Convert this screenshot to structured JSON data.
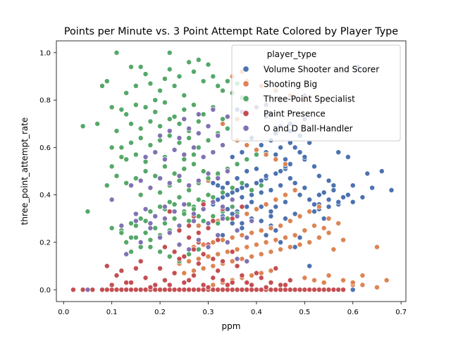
{
  "chart_data": {
    "type": "scatter",
    "title": "Points per Minute vs. 3 Point Attempt Rate Colored by Player Type",
    "xlabel": "ppm",
    "ylabel": "three_point_attempt_rate",
    "xlim": [
      -0.015,
      0.71
    ],
    "ylim": [
      -0.05,
      1.05
    ],
    "x_ticks": [
      0.0,
      0.1,
      0.2,
      0.3,
      0.4,
      0.5,
      0.6,
      0.7
    ],
    "x_tick_labels": [
      "0.0",
      "0.1",
      "0.2",
      "0.3",
      "0.4",
      "0.5",
      "0.6",
      "0.7"
    ],
    "y_ticks": [
      0.0,
      0.2,
      0.4,
      0.6,
      0.8,
      1.0
    ],
    "y_tick_labels": [
      "0.0",
      "0.2",
      "0.4",
      "0.6",
      "0.8",
      "1.0"
    ],
    "grid": false,
    "legend": {
      "title": "player_type",
      "placement": "top-right"
    },
    "series": [
      {
        "name": "Volume Shooter and Scorer",
        "color": "#4c72b0",
        "x": [
          0.61,
          0.66,
          0.68,
          0.63,
          0.59,
          0.6,
          0.57,
          0.55,
          0.56,
          0.54,
          0.53,
          0.52,
          0.5,
          0.49,
          0.47,
          0.46,
          0.45,
          0.44,
          0.42,
          0.41,
          0.4,
          0.38,
          0.37,
          0.36,
          0.35,
          0.34,
          0.33,
          0.32,
          0.31,
          0.5,
          0.48,
          0.47,
          0.45,
          0.43,
          0.41,
          0.39,
          0.37,
          0.52,
          0.51,
          0.49,
          0.46,
          0.44,
          0.42,
          0.4,
          0.38,
          0.36,
          0.34,
          0.55,
          0.57,
          0.53,
          0.51,
          0.48,
          0.46,
          0.43,
          0.41,
          0.39,
          0.37,
          0.35,
          0.33,
          0.31,
          0.29,
          0.47,
          0.45,
          0.42,
          0.4,
          0.38,
          0.36,
          0.44,
          0.47,
          0.5,
          0.53,
          0.56,
          0.58,
          0.6,
          0.62,
          0.64,
          0.43,
          0.41,
          0.39,
          0.37,
          0.35,
          0.33,
          0.45,
          0.48,
          0.49,
          0.51,
          0.54,
          0.52,
          0.46,
          0.44,
          0.42,
          0.4,
          0.38,
          0.36,
          0.34,
          0.32,
          0.48,
          0.5,
          0.46,
          0.44,
          0.43,
          0.41,
          0.4,
          0.39,
          0.37,
          0.35,
          0.38,
          0.36,
          0.42,
          0.45,
          0.47,
          0.49,
          0.51,
          0.59,
          0.57,
          0.55,
          0.53,
          0.43,
          0.41,
          0.39,
          0.37,
          0.35,
          0.33,
          0.31,
          0.47,
          0.45,
          0.44,
          0.42,
          0.6,
          0.44,
          0.46
        ],
        "y": [
          0.94,
          0.5,
          0.42,
          0.49,
          0.56,
          0.44,
          0.58,
          0.46,
          0.44,
          0.41,
          0.48,
          0.52,
          0.55,
          0.58,
          0.53,
          0.51,
          0.5,
          0.49,
          0.47,
          0.46,
          0.45,
          0.44,
          0.43,
          0.42,
          0.41,
          0.4,
          0.39,
          0.38,
          0.37,
          0.43,
          0.45,
          0.47,
          0.44,
          0.42,
          0.41,
          0.4,
          0.39,
          0.36,
          0.38,
          0.4,
          0.37,
          0.35,
          0.36,
          0.34,
          0.35,
          0.33,
          0.34,
          0.38,
          0.36,
          0.34,
          0.33,
          0.32,
          0.3,
          0.31,
          0.29,
          0.3,
          0.28,
          0.32,
          0.31,
          0.36,
          0.34,
          0.62,
          0.6,
          0.58,
          0.57,
          0.55,
          0.53,
          0.66,
          0.7,
          0.72,
          0.36,
          0.42,
          0.39,
          0.37,
          0.39,
          0.43,
          0.27,
          0.25,
          0.24,
          0.26,
          0.28,
          0.23,
          0.2,
          0.18,
          0.22,
          0.1,
          0.3,
          0.33,
          0.52,
          0.49,
          0.48,
          0.51,
          0.5,
          0.47,
          0.45,
          0.44,
          0.6,
          0.56,
          0.55,
          0.57,
          0.63,
          0.61,
          0.59,
          0.64,
          0.58,
          0.56,
          0.8,
          0.76,
          0.73,
          0.69,
          0.67,
          0.65,
          0.62,
          0.4,
          0.37,
          0.35,
          0.4,
          0.33,
          0.35,
          0.37,
          0.39,
          0.41,
          0.43,
          0.45,
          0.29,
          0.27,
          0.25,
          0.23,
          0.0,
          0.0,
          0.0
        ]
      },
      {
        "name": "Shooting Big",
        "color": "#dd8452",
        "x": [
          0.65,
          0.67,
          0.62,
          0.65,
          0.6,
          0.58,
          0.56,
          0.54,
          0.55,
          0.53,
          0.51,
          0.49,
          0.47,
          0.45,
          0.43,
          0.41,
          0.39,
          0.37,
          0.35,
          0.33,
          0.31,
          0.29,
          0.27,
          0.25,
          0.57,
          0.55,
          0.52,
          0.5,
          0.48,
          0.46,
          0.44,
          0.42,
          0.4,
          0.38,
          0.36,
          0.34,
          0.32,
          0.3,
          0.28,
          0.26,
          0.24,
          0.53,
          0.51,
          0.49,
          0.47,
          0.45,
          0.43,
          0.41,
          0.39,
          0.37,
          0.35,
          0.33,
          0.31,
          0.29,
          0.27,
          0.48,
          0.46,
          0.44,
          0.42,
          0.4,
          0.38,
          0.36,
          0.34,
          0.32,
          0.3,
          0.28,
          0.36,
          0.38,
          0.4,
          0.42,
          0.44,
          0.46,
          0.34,
          0.32,
          0.3,
          0.43,
          0.41,
          0.39,
          0.37,
          0.35,
          0.33,
          0.31,
          0.55,
          0.58,
          0.6,
          0.62,
          0.5,
          0.52,
          0.54,
          0.35,
          0.38,
          0.41,
          0.37,
          0.44,
          0.47,
          0.5,
          0.33,
          0.36
        ],
        "y": [
          0.18,
          0.04,
          0.06,
          0.01,
          0.02,
          0.21,
          0.17,
          0.26,
          0.24,
          0.22,
          0.2,
          0.19,
          0.18,
          0.17,
          0.16,
          0.15,
          0.14,
          0.13,
          0.12,
          0.11,
          0.1,
          0.09,
          0.08,
          0.07,
          0.28,
          0.3,
          0.27,
          0.25,
          0.23,
          0.22,
          0.21,
          0.2,
          0.19,
          0.18,
          0.17,
          0.16,
          0.15,
          0.14,
          0.13,
          0.12,
          0.11,
          0.35,
          0.33,
          0.31,
          0.29,
          0.27,
          0.26,
          0.25,
          0.24,
          0.23,
          0.22,
          0.21,
          0.2,
          0.19,
          0.18,
          0.42,
          0.4,
          0.38,
          0.36,
          0.34,
          0.32,
          0.31,
          0.3,
          0.29,
          0.28,
          0.27,
          0.63,
          0.61,
          0.59,
          0.57,
          0.55,
          0.53,
          0.5,
          0.48,
          0.46,
          0.08,
          0.07,
          0.06,
          0.05,
          0.04,
          0.03,
          0.02,
          0.06,
          0.04,
          0.03,
          0.02,
          0.05,
          0.04,
          0.03,
          0.9,
          0.88,
          0.86,
          0.92,
          0.84,
          0.82,
          0.8,
          0.7,
          0.72
        ]
      },
      {
        "name": "Three-Point Specialist",
        "color": "#55a868",
        "x": [
          0.11,
          0.22,
          0.1,
          0.09,
          0.05,
          0.08,
          0.04,
          0.07,
          0.1,
          0.12,
          0.14,
          0.13,
          0.15,
          0.16,
          0.17,
          0.18,
          0.19,
          0.2,
          0.21,
          0.22,
          0.23,
          0.24,
          0.25,
          0.26,
          0.27,
          0.28,
          0.29,
          0.3,
          0.31,
          0.32,
          0.33,
          0.34,
          0.35,
          0.36,
          0.37,
          0.12,
          0.13,
          0.15,
          0.17,
          0.19,
          0.21,
          0.23,
          0.25,
          0.27,
          0.29,
          0.31,
          0.33,
          0.11,
          0.14,
          0.16,
          0.18,
          0.2,
          0.22,
          0.24,
          0.26,
          0.28,
          0.3,
          0.32,
          0.34,
          0.1,
          0.12,
          0.14,
          0.16,
          0.18,
          0.2,
          0.22,
          0.24,
          0.26,
          0.28,
          0.3,
          0.09,
          0.11,
          0.13,
          0.15,
          0.17,
          0.19,
          0.21,
          0.23,
          0.25,
          0.27,
          0.13,
          0.15,
          0.17,
          0.19,
          0.21,
          0.23,
          0.25,
          0.27,
          0.29,
          0.16,
          0.18,
          0.2,
          0.22,
          0.24,
          0.26,
          0.28,
          0.3,
          0.32,
          0.34,
          0.36,
          0.38,
          0.4,
          0.12,
          0.14,
          0.16,
          0.18,
          0.2,
          0.22,
          0.24,
          0.26,
          0.28,
          0.3,
          0.15,
          0.17,
          0.19,
          0.21,
          0.23,
          0.25,
          0.27,
          0.29,
          0.31,
          0.33,
          0.35,
          0.37,
          0.39,
          0.41,
          0.13,
          0.15,
          0.17,
          0.19,
          0.21,
          0.23,
          0.25,
          0.27,
          0.29,
          0.31,
          0.33,
          0.35,
          0.14,
          0.16,
          0.18,
          0.2,
          0.22,
          0.24,
          0.26,
          0.28,
          0.3,
          0.32,
          0.34,
          0.36,
          0.1,
          0.12,
          0.14,
          0.16,
          0.18,
          0.2,
          0.22,
          0.24,
          0.26,
          0.28,
          0.3,
          0.32
        ],
        "y": [
          1.0,
          1.0,
          0.77,
          0.88,
          0.33,
          0.86,
          0.69,
          0.7,
          0.6,
          0.56,
          0.94,
          0.83,
          0.86,
          0.94,
          0.91,
          0.87,
          0.8,
          0.84,
          0.89,
          0.93,
          0.86,
          0.9,
          0.82,
          0.96,
          0.92,
          0.97,
          0.88,
          0.95,
          0.9,
          0.86,
          0.84,
          0.88,
          0.83,
          0.87,
          0.81,
          0.76,
          0.74,
          0.78,
          0.77,
          0.75,
          0.79,
          0.73,
          0.76,
          0.78,
          0.74,
          0.77,
          0.72,
          0.67,
          0.7,
          0.68,
          0.71,
          0.69,
          0.72,
          0.7,
          0.67,
          0.71,
          0.69,
          0.66,
          0.68,
          0.52,
          0.6,
          0.62,
          0.64,
          0.61,
          0.63,
          0.65,
          0.62,
          0.64,
          0.6,
          0.63,
          0.44,
          0.48,
          0.55,
          0.57,
          0.54,
          0.58,
          0.56,
          0.59,
          0.55,
          0.57,
          0.45,
          0.47,
          0.5,
          0.48,
          0.52,
          0.49,
          0.51,
          0.53,
          0.5,
          0.4,
          0.43,
          0.41,
          0.44,
          0.46,
          0.42,
          0.45,
          0.47,
          0.49,
          0.51,
          0.53,
          0.55,
          0.57,
          0.25,
          0.28,
          0.3,
          0.33,
          0.35,
          0.37,
          0.39,
          0.36,
          0.38,
          0.4,
          0.27,
          0.29,
          0.31,
          0.34,
          0.36,
          0.33,
          0.35,
          0.37,
          0.39,
          0.41,
          0.43,
          0.45,
          0.42,
          0.44,
          0.2,
          0.22,
          0.24,
          0.26,
          0.28,
          0.3,
          0.32,
          0.34,
          0.29,
          0.31,
          0.33,
          0.35,
          0.16,
          0.18,
          0.21,
          0.23,
          0.25,
          0.27,
          0.29,
          0.31,
          0.26,
          0.28,
          0.3,
          0.32,
          0.26,
          0.24,
          0.22,
          0.2,
          0.18,
          0.16,
          0.14,
          0.12,
          0.15,
          0.17,
          0.19,
          0.21
        ]
      },
      {
        "name": "Paint Presence",
        "color": "#c44e52",
        "x": [
          0.02,
          0.04,
          0.06,
          0.08,
          0.09,
          0.1,
          0.11,
          0.12,
          0.13,
          0.14,
          0.15,
          0.16,
          0.17,
          0.18,
          0.19,
          0.2,
          0.21,
          0.22,
          0.23,
          0.24,
          0.25,
          0.26,
          0.27,
          0.28,
          0.29,
          0.3,
          0.31,
          0.32,
          0.33,
          0.34,
          0.35,
          0.36,
          0.37,
          0.38,
          0.39,
          0.4,
          0.41,
          0.42,
          0.43,
          0.44,
          0.45,
          0.46,
          0.47,
          0.48,
          0.49,
          0.5,
          0.51,
          0.52,
          0.53,
          0.54,
          0.55,
          0.56,
          0.57,
          0.58,
          0.09,
          0.11,
          0.13,
          0.15,
          0.17,
          0.19,
          0.21,
          0.23,
          0.25,
          0.27,
          0.29,
          0.31,
          0.33,
          0.35,
          0.37,
          0.39,
          0.41,
          0.43,
          0.45,
          0.47,
          0.1,
          0.14,
          0.18,
          0.22,
          0.26,
          0.3,
          0.34,
          0.38,
          0.42,
          0.46,
          0.12,
          0.16,
          0.2,
          0.24,
          0.28,
          0.32,
          0.36,
          0.4,
          0.44,
          0.21,
          0.23,
          0.25,
          0.27,
          0.29,
          0.31,
          0.33,
          0.35,
          0.26,
          0.28,
          0.3,
          0.32,
          0.24,
          0.26,
          0.28,
          0.3,
          0.22,
          0.27,
          0.31,
          0.35,
          0.29,
          0.33,
          0.37
        ],
        "y": [
          0.0,
          0.0,
          0.0,
          0.0,
          0.0,
          0.0,
          0.0,
          0.0,
          0.0,
          0.0,
          0.0,
          0.0,
          0.0,
          0.0,
          0.0,
          0.0,
          0.0,
          0.0,
          0.0,
          0.0,
          0.0,
          0.0,
          0.0,
          0.0,
          0.0,
          0.0,
          0.0,
          0.0,
          0.0,
          0.0,
          0.0,
          0.0,
          0.0,
          0.0,
          0.0,
          0.0,
          0.0,
          0.0,
          0.0,
          0.0,
          0.0,
          0.0,
          0.0,
          0.0,
          0.0,
          0.0,
          0.0,
          0.0,
          0.0,
          0.0,
          0.0,
          0.0,
          0.0,
          0.0,
          0.1,
          0.06,
          0.03,
          0.09,
          0.05,
          0.02,
          0.04,
          0.07,
          0.03,
          0.06,
          0.02,
          0.05,
          0.04,
          0.03,
          0.06,
          0.02,
          0.05,
          0.03,
          0.02,
          0.04,
          0.02,
          0.03,
          0.01,
          0.02,
          0.04,
          0.01,
          0.02,
          0.03,
          0.01,
          0.02,
          0.08,
          0.12,
          0.09,
          0.13,
          0.11,
          0.08,
          0.1,
          0.07,
          0.09,
          0.18,
          0.16,
          0.14,
          0.17,
          0.15,
          0.13,
          0.12,
          0.16,
          0.22,
          0.2,
          0.19,
          0.21,
          0.25,
          0.27,
          0.24,
          0.26,
          0.33,
          0.31,
          0.29,
          0.3,
          0.36,
          0.34,
          0.35
        ]
      },
      {
        "name": "O and D Ball-Handler",
        "color": "#8172b3",
        "x": [
          0.1,
          0.13,
          0.16,
          0.18,
          0.2,
          0.22,
          0.24,
          0.26,
          0.28,
          0.3,
          0.32,
          0.34,
          0.36,
          0.38,
          0.15,
          0.17,
          0.19,
          0.21,
          0.23,
          0.25,
          0.27,
          0.29,
          0.31,
          0.33,
          0.35,
          0.14,
          0.16,
          0.18,
          0.2,
          0.22,
          0.24,
          0.26,
          0.28,
          0.3,
          0.32,
          0.34,
          0.17,
          0.19,
          0.21,
          0.23,
          0.25,
          0.27,
          0.29,
          0.31,
          0.33,
          0.2,
          0.22,
          0.24,
          0.26,
          0.28,
          0.3,
          0.32,
          0.12,
          0.15,
          0.18,
          0.21,
          0.24,
          0.27,
          0.3,
          0.33,
          0.36,
          0.39,
          0.25,
          0.28,
          0.31,
          0.34,
          0.37,
          0.4,
          0.43,
          0.5,
          0.45,
          0.42,
          0.05,
          0.36,
          0.38
        ],
        "y": [
          0.38,
          0.15,
          0.2,
          0.26,
          0.22,
          0.24,
          0.19,
          0.17,
          0.21,
          0.18,
          0.23,
          0.2,
          0.25,
          0.22,
          0.32,
          0.34,
          0.31,
          0.35,
          0.33,
          0.36,
          0.32,
          0.34,
          0.37,
          0.35,
          0.38,
          0.44,
          0.46,
          0.43,
          0.47,
          0.45,
          0.48,
          0.44,
          0.46,
          0.49,
          0.47,
          0.5,
          0.56,
          0.58,
          0.55,
          0.59,
          0.57,
          0.6,
          0.56,
          0.58,
          0.61,
          0.65,
          0.67,
          0.64,
          0.68,
          0.66,
          0.69,
          0.65,
          0.27,
          0.29,
          0.28,
          0.3,
          0.27,
          0.29,
          0.28,
          0.3,
          0.31,
          0.29,
          0.72,
          0.74,
          0.76,
          0.73,
          0.75,
          0.77,
          0.74,
          0.82,
          0.8,
          0.78,
          0.0,
          0.13,
          0.12
        ]
      }
    ]
  }
}
